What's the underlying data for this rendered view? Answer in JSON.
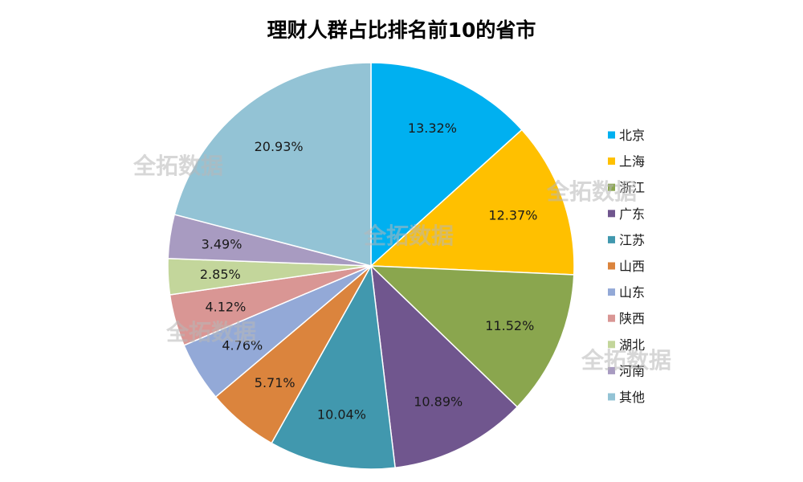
{
  "chart_data": {
    "type": "pie",
    "title": "理财人群占比排名前10的省市",
    "legend_position": "right",
    "start_angle_deg": 0,
    "direction": "clockwise",
    "slices": [
      {
        "name": "北京",
        "value": 13.32,
        "label": "13.32%",
        "color": "#00B0F0"
      },
      {
        "name": "上海",
        "value": 12.37,
        "label": "12.37%",
        "color": "#FFC000"
      },
      {
        "name": "浙江",
        "value": 11.52,
        "label": "11.52%",
        "color": "#8AA64E"
      },
      {
        "name": "广东",
        "value": 10.89,
        "label": "10.89%",
        "color": "#70568E"
      },
      {
        "name": "江苏",
        "value": 10.04,
        "label": "10.04%",
        "color": "#4198AE"
      },
      {
        "name": "山西",
        "value": 5.71,
        "label": "5.71%",
        "color": "#DB843D"
      },
      {
        "name": "山东",
        "value": 4.76,
        "label": "4.76%",
        "color": "#93A9D7"
      },
      {
        "name": "陕西",
        "value": 4.12,
        "label": "4.12%",
        "color": "#D99694"
      },
      {
        "name": "湖北",
        "value": 2.85,
        "label": "2.85%",
        "color": "#C3D69B"
      },
      {
        "name": "河南",
        "value": 3.49,
        "label": "3.49%",
        "color": "#A89BC1"
      },
      {
        "name": "其他",
        "value": 20.93,
        "label": "20.93%",
        "color": "#93C3D5"
      }
    ]
  },
  "watermarks": [
    "全拓数据",
    "全拓数据",
    "全拓数据",
    "全拓数据",
    "全拓数据"
  ]
}
